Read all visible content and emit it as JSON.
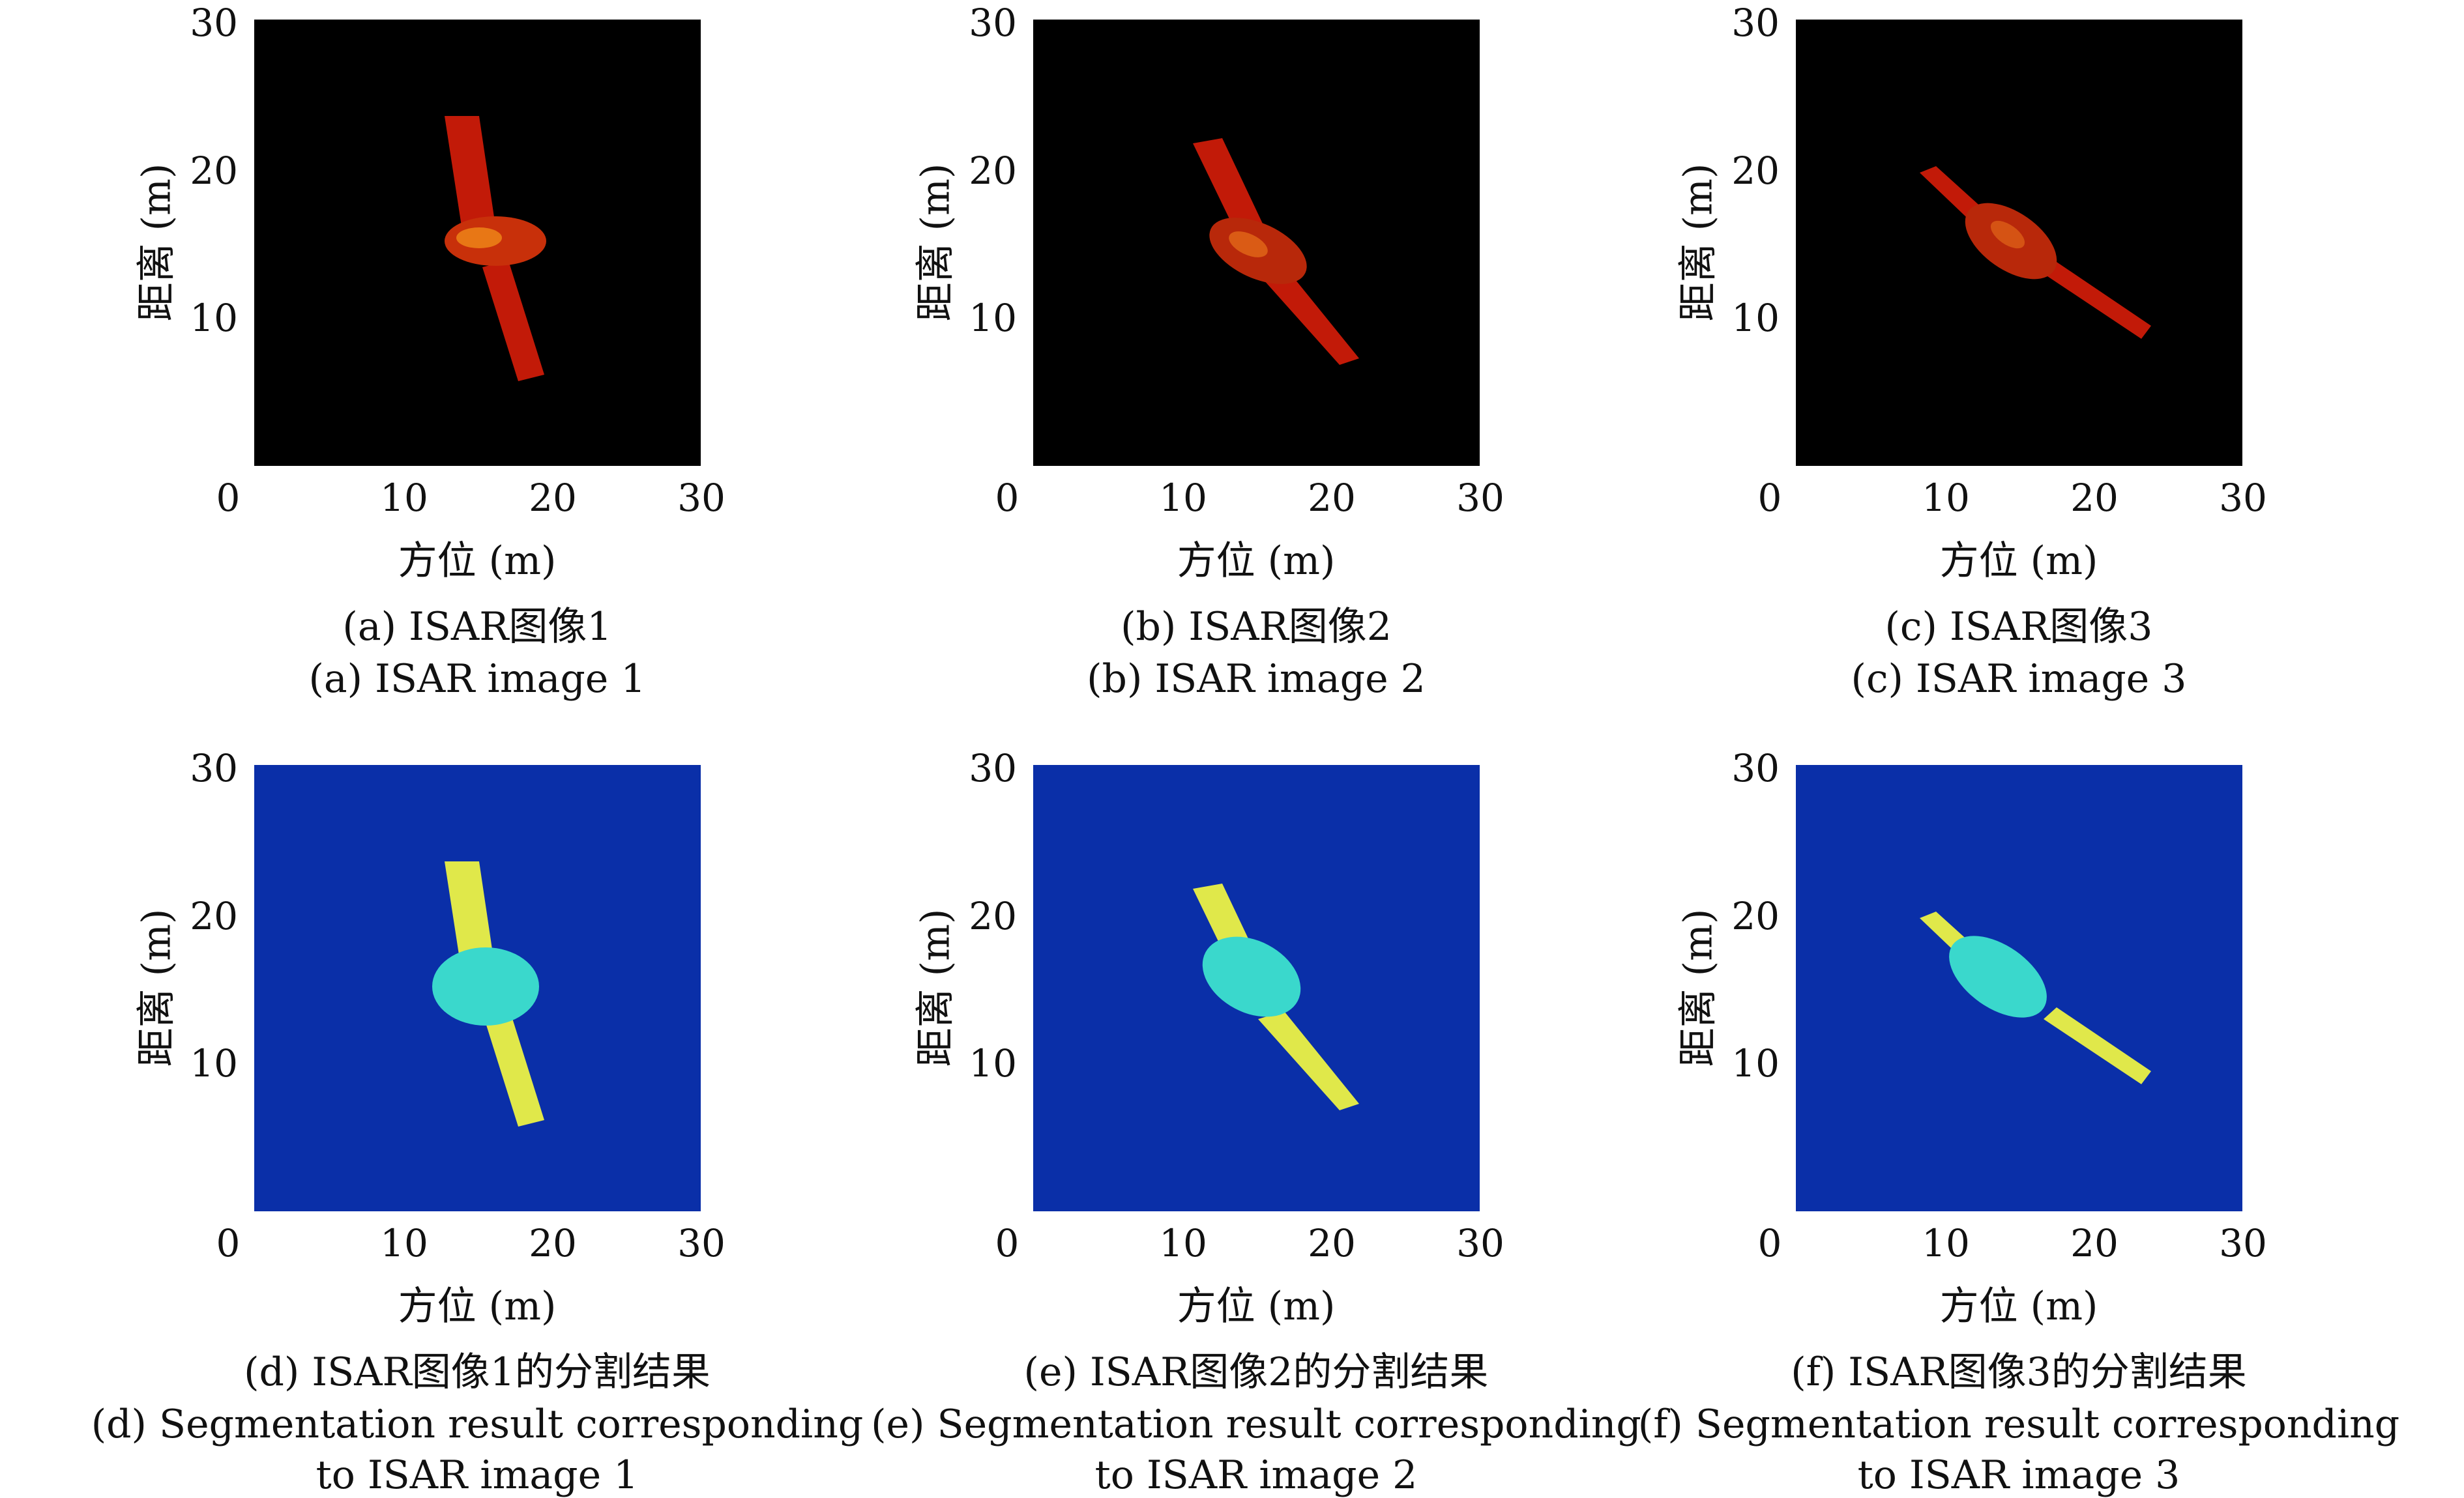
{
  "colors": {
    "radar_bg": "#000000",
    "radar_target": "#c21a08",
    "radar_highlight": "#f08a18",
    "seg_bg": "#0a2fa8",
    "seg_panel": "#e0e84a",
    "seg_body": "#3ad8cc"
  },
  "axes": {
    "xlabel": "方位 (m)",
    "ylabel": "距离 (m)",
    "xticks": [
      "0",
      "10",
      "20",
      "30"
    ],
    "yticks": [
      "30",
      "20",
      "10"
    ]
  },
  "panels": [
    {
      "caption_zh": "(a) ISAR图像1",
      "caption_en_1": "(a) ISAR image 1",
      "caption_en_2": ""
    },
    {
      "caption_zh": "(b) ISAR图像2",
      "caption_en_1": "(b) ISAR image 2",
      "caption_en_2": ""
    },
    {
      "caption_zh": "(c) ISAR图像3",
      "caption_en_1": "(c) ISAR image 3",
      "caption_en_2": ""
    },
    {
      "caption_zh": "(d) ISAR图像1的分割结果",
      "caption_en_1": "(d) Segmentation result corresponding",
      "caption_en_2": "to ISAR image 1"
    },
    {
      "caption_zh": "(e) ISAR图像2的分割结果",
      "caption_en_1": "(e) Segmentation result corresponding",
      "caption_en_2": "to ISAR image 2"
    },
    {
      "caption_zh": "(f) ISAR图像3的分割结果",
      "caption_en_1": "(f) Segmentation result corresponding",
      "caption_en_2": "to ISAR image 3"
    }
  ]
}
